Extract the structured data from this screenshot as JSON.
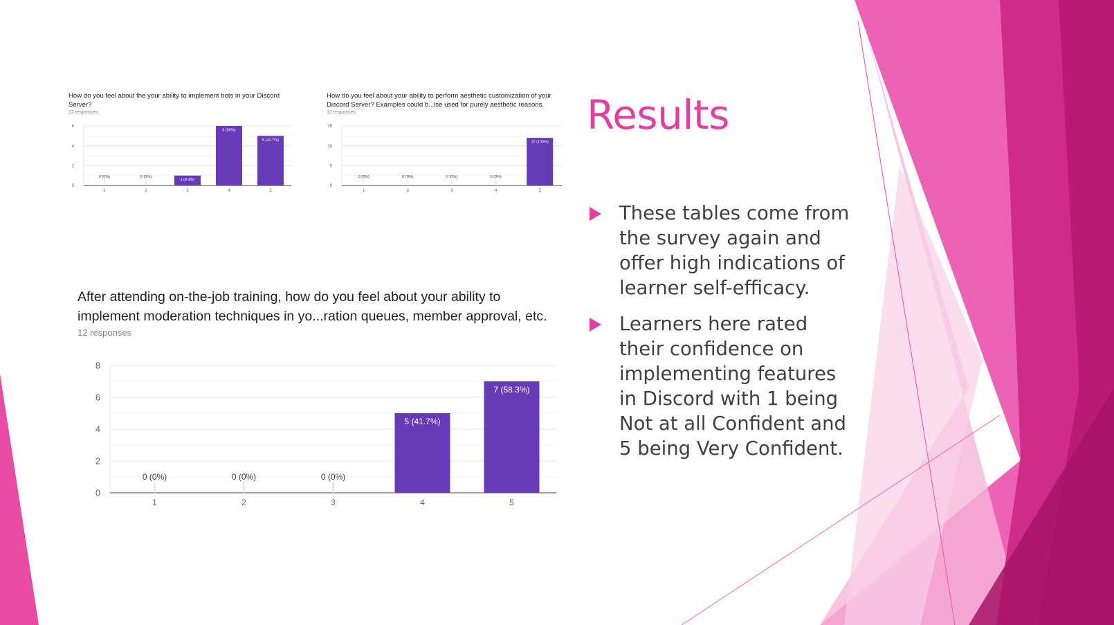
{
  "slide": {
    "title": "Results",
    "bullets": [
      "These tables come from the survey again and offer high indications of learner self-efficacy.",
      "Learners here rated their confidence on implementing features in Discord with 1 being Not at all Confident and 5 being Very Confident."
    ],
    "accent_color": "#e040a0",
    "bar_color": "#673ab7",
    "bullet_icon": "triangle-bullet-icon"
  },
  "chart_data": [
    {
      "type": "bar",
      "title": "How do you feel about the your ability to implement bots in your Discord Server?",
      "subtitle": "12 responses",
      "categories": [
        "1",
        "2",
        "3",
        "4",
        "5"
      ],
      "values": [
        0,
        0,
        1,
        6,
        5
      ],
      "data_labels": [
        "0 (0%)",
        "0 (0%)",
        "1 (8.3%)",
        "6 (50%)",
        "5 (41.7%)"
      ],
      "yticks": [
        "0",
        "2",
        "4",
        "6"
      ],
      "ylim": [
        0,
        6
      ],
      "grid": true
    },
    {
      "type": "bar",
      "title": "How do you feel about your ability to perform aesthetic customization of your Discord Server?  Examples could b...lse used for purely aesthetic reasons.",
      "subtitle": "12 responses",
      "categories": [
        "1",
        "2",
        "3",
        "4",
        "5"
      ],
      "values": [
        0,
        0,
        0,
        0,
        12
      ],
      "data_labels": [
        "0 (0%)",
        "0 (0%)",
        "0 (0%)",
        "0 (0%)",
        "12 (100%)"
      ],
      "yticks": [
        "0",
        "5",
        "10",
        "15"
      ],
      "ylim": [
        0,
        15
      ],
      "grid": true
    },
    {
      "type": "bar",
      "title": "After attending on-the-job training, how do you feel about your ability to implement moderation techniques in yo...ration queues, member approval, etc.",
      "subtitle": "12 responses",
      "categories": [
        "1",
        "2",
        "3",
        "4",
        "5"
      ],
      "values": [
        0,
        0,
        0,
        5,
        7
      ],
      "data_labels": [
        "0 (0%)",
        "0 (0%)",
        "0 (0%)",
        "5 (41.7%)",
        "7 (58.3%)"
      ],
      "yticks": [
        "0",
        "2",
        "4",
        "6",
        "8"
      ],
      "ylim": [
        0,
        8
      ],
      "grid": true
    }
  ]
}
